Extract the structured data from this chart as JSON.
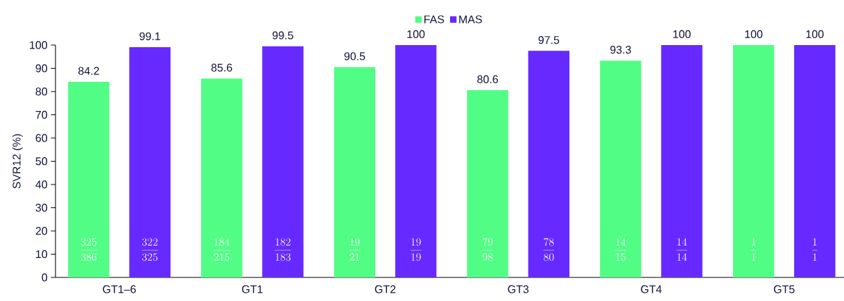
{
  "chart_data": {
    "type": "bar",
    "ylabel": "SVR12 (%)",
    "categories": [
      "GT1–6",
      "GT1",
      "GT2",
      "GT3",
      "GT4",
      "GT5"
    ],
    "series": [
      {
        "name": "FAS",
        "color": "#52fd86",
        "values": [
          84.2,
          85.6,
          90.5,
          80.6,
          93.3,
          100
        ]
      },
      {
        "name": "MAS",
        "color": "#6629ff",
        "values": [
          99.1,
          99.5,
          100,
          97.5,
          100,
          100
        ]
      }
    ],
    "ylim": [
      0,
      100
    ],
    "yticks": [
      0,
      10,
      20,
      30,
      40,
      50,
      60,
      70,
      80,
      90,
      100
    ],
    "data_labels": true,
    "legend": "top",
    "grid": false,
    "annotations": [
      "\\frac{325}{386}",
      "\\frac{322}{325}",
      "\\frac{184}{215}",
      "\\frac{182}{183}",
      "\\frac{19}{21}",
      "\\frac{19}{19}",
      "\\frac{79}{98}",
      "\\frac{78}{80}",
      "\\frac{14}{15}",
      "\\frac{14}{14}",
      "\\frac{1}{1}",
      "\\frac{1}{1}"
    ]
  }
}
